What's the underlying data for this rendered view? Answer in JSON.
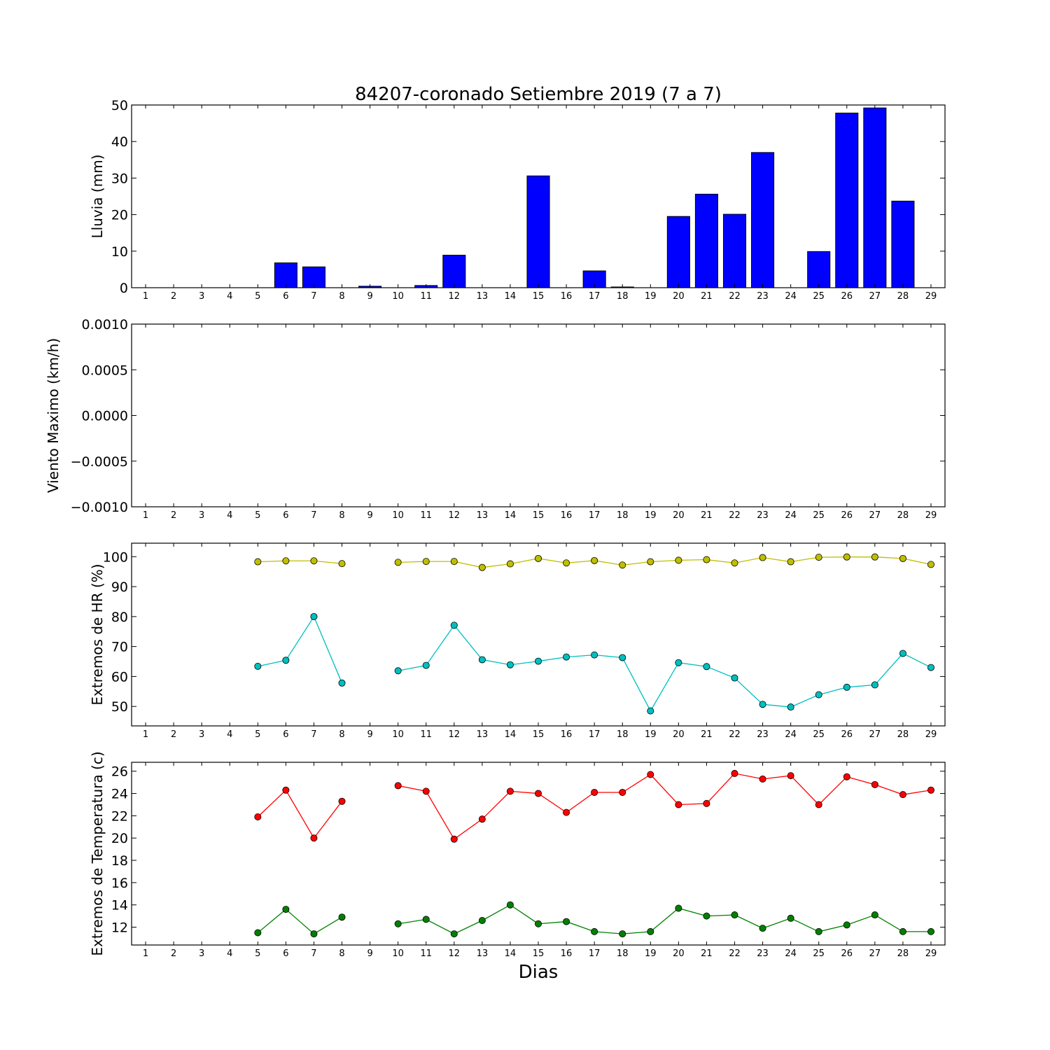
{
  "figure": {
    "title": "84207-coronado Setiembre 2019  (7 a 7)",
    "xlabel": "Dias"
  },
  "chart_data": [
    {
      "type": "bar",
      "title": "84207-coronado Setiembre 2019  (7 a 7)",
      "xlabel": "",
      "ylabel": "Lluvia (mm)",
      "x": [
        1,
        2,
        3,
        4,
        5,
        6,
        7,
        8,
        9,
        10,
        11,
        12,
        13,
        14,
        15,
        16,
        17,
        18,
        19,
        20,
        21,
        22,
        23,
        24,
        25,
        26,
        27,
        28,
        29
      ],
      "xlim": [
        0.5,
        29.5
      ],
      "ylim": [
        0,
        50
      ],
      "yticks": [
        0,
        10,
        20,
        30,
        40,
        50
      ],
      "series": [
        {
          "color": "#0000ff",
          "values": [
            0,
            0,
            0,
            0,
            0,
            6.8,
            5.7,
            0,
            0.4,
            0,
            0.6,
            8.9,
            0,
            0,
            30.6,
            0,
            4.6,
            0.2,
            0,
            19.5,
            25.6,
            20.1,
            37,
            0,
            9.9,
            47.8,
            49.2,
            23.7,
            0
          ]
        }
      ],
      "grid": false
    },
    {
      "type": "line",
      "title": "",
      "xlabel": "",
      "ylabel": "Viento Maximo (km/h)",
      "x": [
        1,
        2,
        3,
        4,
        5,
        6,
        7,
        8,
        9,
        10,
        11,
        12,
        13,
        14,
        15,
        16,
        17,
        18,
        19,
        20,
        21,
        22,
        23,
        24,
        25,
        26,
        27,
        28,
        29
      ],
      "xlim": [
        0.5,
        29.5
      ],
      "ylim": [
        -0.001,
        0.001
      ],
      "yticks": [
        -0.001,
        -0.0005,
        0.0,
        0.0005,
        0.001
      ],
      "ytick_labels": [
        "−0.0010",
        "−0.0005",
        "0.0000",
        "0.0005",
        "0.0010"
      ],
      "series": [],
      "grid": false
    },
    {
      "type": "line",
      "title": "",
      "xlabel": "",
      "ylabel": "Extremos de HR (%)",
      "x": [
        1,
        2,
        3,
        4,
        5,
        6,
        7,
        8,
        9,
        10,
        11,
        12,
        13,
        14,
        15,
        16,
        17,
        18,
        19,
        20,
        21,
        22,
        23,
        24,
        25,
        26,
        27,
        28,
        29
      ],
      "xlim": [
        0.5,
        29.5
      ],
      "ylim": [
        43.5,
        104.5
      ],
      "yticks": [
        50,
        60,
        70,
        80,
        90,
        100
      ],
      "series": [
        {
          "color": "#bfbf00",
          "values": [
            null,
            null,
            null,
            null,
            98.3,
            98.6,
            98.6,
            97.7,
            null,
            98.1,
            98.4,
            98.4,
            96.4,
            97.6,
            99.4,
            97.9,
            98.7,
            97.2,
            98.3,
            98.8,
            99.0,
            97.9,
            99.7,
            98.3,
            99.8,
            99.9,
            99.9,
            99.4,
            97.4
          ]
        },
        {
          "color": "#00bfbf",
          "values": [
            null,
            null,
            null,
            null,
            63.4,
            65.4,
            80.0,
            57.8,
            null,
            61.9,
            63.7,
            77.1,
            65.6,
            63.9,
            65.1,
            66.5,
            67.2,
            66.3,
            48.5,
            64.6,
            63.3,
            59.5,
            50.7,
            49.8,
            53.9,
            56.4,
            57.2,
            67.7,
            63.0
          ]
        }
      ],
      "grid": false
    },
    {
      "type": "line",
      "title": "",
      "xlabel": "Dias",
      "ylabel": "Extremos de Temperatura (c)",
      "x": [
        1,
        2,
        3,
        4,
        5,
        6,
        7,
        8,
        9,
        10,
        11,
        12,
        13,
        14,
        15,
        16,
        17,
        18,
        19,
        20,
        21,
        22,
        23,
        24,
        25,
        26,
        27,
        28,
        29
      ],
      "xlim": [
        0.5,
        29.5
      ],
      "ylim": [
        10.4,
        26.8
      ],
      "yticks": [
        12,
        14,
        16,
        18,
        20,
        22,
        24,
        26
      ],
      "series": [
        {
          "color": "#ff0000",
          "values": [
            null,
            null,
            null,
            null,
            21.9,
            24.3,
            20.0,
            23.3,
            null,
            24.7,
            24.2,
            19.9,
            21.7,
            24.2,
            24.0,
            22.3,
            24.1,
            24.1,
            25.7,
            23.0,
            23.1,
            25.8,
            25.3,
            25.6,
            23.0,
            25.5,
            24.8,
            23.9,
            24.3
          ]
        },
        {
          "color": "#008000",
          "values": [
            null,
            null,
            null,
            null,
            11.5,
            13.6,
            11.4,
            12.9,
            null,
            12.3,
            12.7,
            11.4,
            12.6,
            14.0,
            12.3,
            12.5,
            11.6,
            11.4,
            11.6,
            13.7,
            13.0,
            13.1,
            11.9,
            12.8,
            11.6,
            12.2,
            13.1,
            11.6,
            11.6
          ]
        }
      ],
      "grid": false
    }
  ]
}
